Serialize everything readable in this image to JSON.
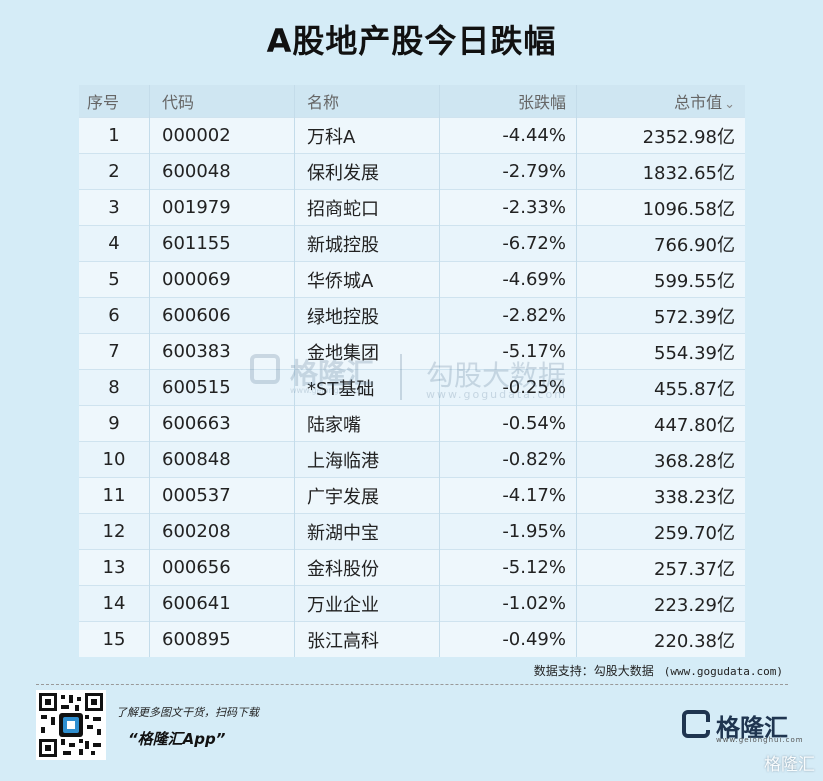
{
  "title": "A股地产股今日跌幅",
  "table": {
    "headers": {
      "idx": "序号",
      "code": "代码",
      "name": "名称",
      "chg": "张跌幅",
      "cap": "总市值"
    },
    "rows": [
      {
        "idx": "1",
        "code": "000002",
        "name": "万科A",
        "chg": "-4.44%",
        "cap": "2352.98亿"
      },
      {
        "idx": "2",
        "code": "600048",
        "name": "保利发展",
        "chg": "-2.79%",
        "cap": "1832.65亿"
      },
      {
        "idx": "3",
        "code": "001979",
        "name": "招商蛇口",
        "chg": "-2.33%",
        "cap": "1096.58亿"
      },
      {
        "idx": "4",
        "code": "601155",
        "name": "新城控股",
        "chg": "-6.72%",
        "cap": "766.90亿"
      },
      {
        "idx": "5",
        "code": "000069",
        "name": "华侨城A",
        "chg": "-4.69%",
        "cap": "599.55亿"
      },
      {
        "idx": "6",
        "code": "600606",
        "name": "绿地控股",
        "chg": "-2.82%",
        "cap": "572.39亿"
      },
      {
        "idx": "7",
        "code": "600383",
        "name": "金地集团",
        "chg": "-5.17%",
        "cap": "554.39亿"
      },
      {
        "idx": "8",
        "code": "600515",
        "name": "*ST基础",
        "chg": "-0.25%",
        "cap": "455.87亿"
      },
      {
        "idx": "9",
        "code": "600663",
        "name": "陆家嘴",
        "chg": "-0.54%",
        "cap": "447.80亿"
      },
      {
        "idx": "10",
        "code": "600848",
        "name": "上海临港",
        "chg": "-0.82%",
        "cap": "368.28亿"
      },
      {
        "idx": "11",
        "code": "000537",
        "name": "广宇发展",
        "chg": "-4.17%",
        "cap": "338.23亿"
      },
      {
        "idx": "12",
        "code": "600208",
        "name": "新湖中宝",
        "chg": "-1.95%",
        "cap": "259.70亿"
      },
      {
        "idx": "13",
        "code": "000656",
        "name": "金科股份",
        "chg": "-5.12%",
        "cap": "257.37亿"
      },
      {
        "idx": "14",
        "code": "600641",
        "name": "万业企业",
        "chg": "-1.02%",
        "cap": "223.29亿"
      },
      {
        "idx": "15",
        "code": "600895",
        "name": "张江高科",
        "chg": "-0.49%",
        "cap": "220.38亿"
      }
    ]
  },
  "chart_data": {
    "type": "table",
    "title": "A股地产股今日跌幅",
    "columns": [
      "序号",
      "代码",
      "名称",
      "张跌幅",
      "总市值"
    ],
    "rows": [
      [
        "1",
        "000002",
        "万科A",
        "-4.44%",
        "2352.98亿"
      ],
      [
        "2",
        "600048",
        "保利发展",
        "-2.79%",
        "1832.65亿"
      ],
      [
        "3",
        "001979",
        "招商蛇口",
        "-2.33%",
        "1096.58亿"
      ],
      [
        "4",
        "601155",
        "新城控股",
        "-6.72%",
        "766.90亿"
      ],
      [
        "5",
        "000069",
        "华侨城A",
        "-4.69%",
        "599.55亿"
      ],
      [
        "6",
        "600606",
        "绿地控股",
        "-2.82%",
        "572.39亿"
      ],
      [
        "7",
        "600383",
        "金地集团",
        "-5.17%",
        "554.39亿"
      ],
      [
        "8",
        "600515",
        "*ST基础",
        "-0.25%",
        "455.87亿"
      ],
      [
        "9",
        "600663",
        "陆家嘴",
        "-0.54%",
        "447.80亿"
      ],
      [
        "10",
        "600848",
        "上海临港",
        "-0.82%",
        "368.28亿"
      ],
      [
        "11",
        "000537",
        "广宇发展",
        "-4.17%",
        "338.23亿"
      ],
      [
        "12",
        "600208",
        "新湖中宝",
        "-1.95%",
        "259.70亿"
      ],
      [
        "13",
        "000656",
        "金科股份",
        "-5.12%",
        "257.37亿"
      ],
      [
        "14",
        "600641",
        "万业企业",
        "-1.02%",
        "223.29亿"
      ],
      [
        "15",
        "600895",
        "张江高科",
        "-0.49%",
        "220.38亿"
      ]
    ]
  },
  "colors": {
    "negative_change": "#1faa4f",
    "background": "#d5ecf7",
    "brand": "#1f3550"
  },
  "icons": {
    "sort": "chevron-down-icon",
    "logo": "gelonghui-logo-icon"
  },
  "watermark": {
    "brand": "格隆汇",
    "brand_sub": "www.gelonghui.com",
    "text": "勾股大数据",
    "url": "www.gogudata.com"
  },
  "footer": {
    "source_label": "数据支持：勾股大数据",
    "source_url": "(www.gogudata.com)",
    "promo_line1": "了解更多图文干货，扫码下载",
    "promo_line2": "“格隆汇App”",
    "brand_name": "格隆汇",
    "brand_url": "www.gelonghui.com",
    "corner_mark": "格隆汇"
  }
}
